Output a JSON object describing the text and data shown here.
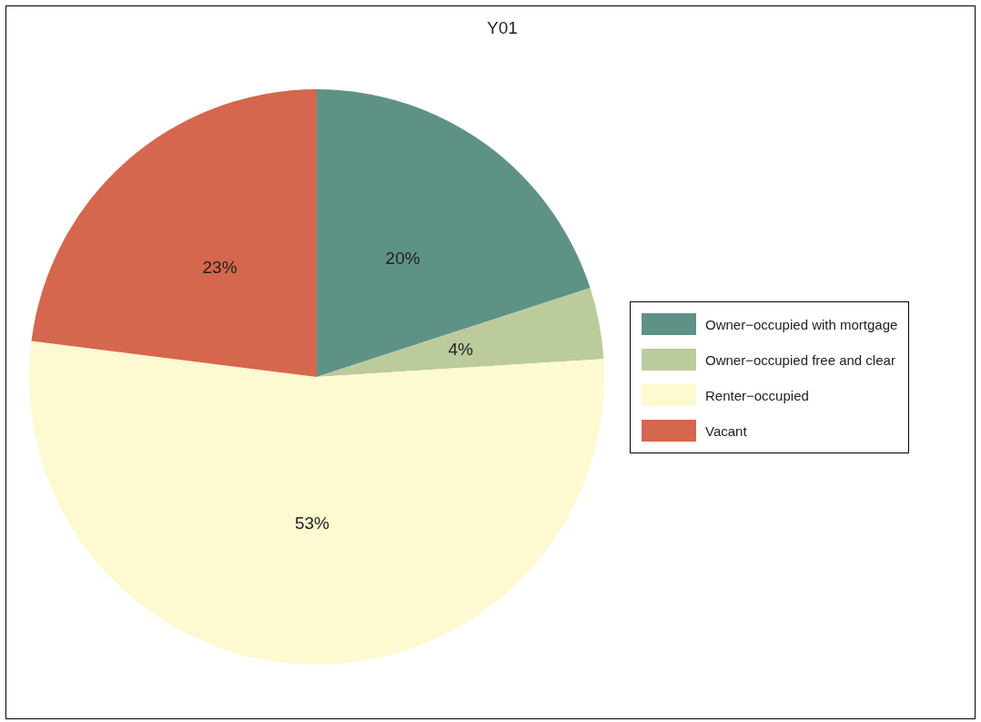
{
  "chart_data": {
    "type": "pie",
    "title": "Y01",
    "categories": [
      "Owner−occupied with mortgage",
      "Owner−occupied free and clear",
      "Renter−occupied",
      "Vacant"
    ],
    "values": [
      20,
      4,
      53,
      23
    ],
    "colors": [
      "#5f9286",
      "#bccb9b",
      "#fdf9d1",
      "#d4674e"
    ],
    "value_labels": [
      "20%",
      "4%",
      "53%",
      "23%"
    ],
    "legend": "right"
  }
}
